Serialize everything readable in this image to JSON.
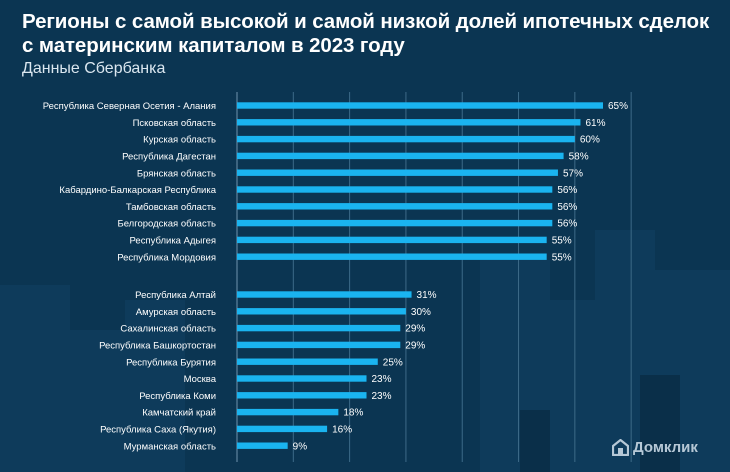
{
  "header": {
    "title": "Регионы с самой высокой и самой низкой долей ипотечных сделок с материнским капиталом в 2023 году",
    "subtitle": "Данные Сбербанка"
  },
  "brand": {
    "logo_text": "Домклик"
  },
  "colors": {
    "background": "#0b3552",
    "bar": "#1ab4f0",
    "grid": "#3d6a88",
    "text": "#ffffff"
  },
  "chart_data": {
    "type": "bar",
    "orientation": "horizontal",
    "value_suffix": "%",
    "xlim": [
      0,
      70
    ],
    "grid": true,
    "groups": [
      {
        "categories": [
          "Республика Северная Осетия - Алания",
          "Псковская область",
          "Курская область",
          "Республика Дагестан",
          "Брянская область",
          "Кабардино-Балкарская Республика",
          "Тамбовская область",
          "Белгородская область",
          "Республика Адыгея",
          "Республика Мордовия"
        ],
        "values": [
          65,
          61,
          60,
          58,
          57,
          56,
          56,
          56,
          55,
          55
        ]
      },
      {
        "categories": [
          "Республика Алтай",
          "Амурская область",
          "Сахалинская область",
          "Республика Башкортостан",
          "Республика Бурятия",
          "Москва",
          "Республика Коми",
          "Камчатский край",
          "Республика Саха (Якутия)",
          "Мурманская область"
        ],
        "values": [
          31,
          30,
          29,
          29,
          25,
          23,
          23,
          18,
          16,
          9
        ]
      }
    ]
  }
}
